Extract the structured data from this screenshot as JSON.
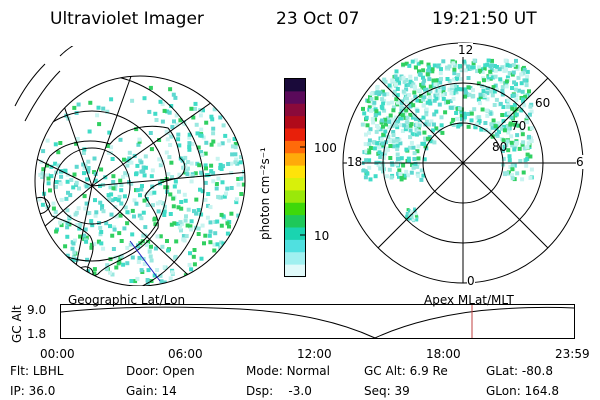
{
  "header": {
    "title": "Ultraviolet Imager",
    "date": "23 Oct 07",
    "time": "19:21:50 UT"
  },
  "colorbar": {
    "label": "photon cm⁻²s⁻¹",
    "ticks": [
      "100",
      "10"
    ],
    "colors": [
      "#1a0a3a",
      "#5a0a5a",
      "#8a0a3a",
      "#b00a1a",
      "#e8200a",
      "#ff6a0a",
      "#ffaa0a",
      "#ffe30a",
      "#d8f00a",
      "#9ae80a",
      "#3ed80a",
      "#1ec85a",
      "#1ad4b0",
      "#50e0e0",
      "#a0f0f0",
      "#e0fafa"
    ]
  },
  "maps": {
    "left_label": "Geographic Lat/Lon",
    "right_label": "Apex  MLat/MLT",
    "mlt_labels": {
      "top": "12",
      "left": "18",
      "right": "6",
      "bottom": "0"
    },
    "mlat_labels": [
      "60",
      "70",
      "80"
    ],
    "aurora_color": "#40dcc8",
    "aurora_bright": "#30d060"
  },
  "timeline": {
    "ylabel": "GC Alt",
    "yticks": [
      "9.0",
      "1.8"
    ],
    "xticks": [
      "00:00",
      "06:00",
      "12:00",
      "18:00",
      "23:59"
    ],
    "current_marker_color": "#c04040"
  },
  "info": {
    "row1": [
      {
        "key": "Flt:",
        "val": "LBHL"
      },
      {
        "key": "Door:",
        "val": "Open"
      },
      {
        "key": "Mode:",
        "val": "Normal"
      },
      {
        "key": "GC Alt:",
        "val": "6.9 Re"
      },
      {
        "key": "GLat:",
        "val": "-80.8"
      }
    ],
    "row2": [
      {
        "key": "IP:",
        "val": "36.0"
      },
      {
        "key": "Gain:",
        "val": "14"
      },
      {
        "key": "Dsp:",
        "val": "-3.0"
      },
      {
        "key": "Seq:",
        "val": "39"
      },
      {
        "key": "GLon:",
        "val": "164.8"
      }
    ]
  }
}
